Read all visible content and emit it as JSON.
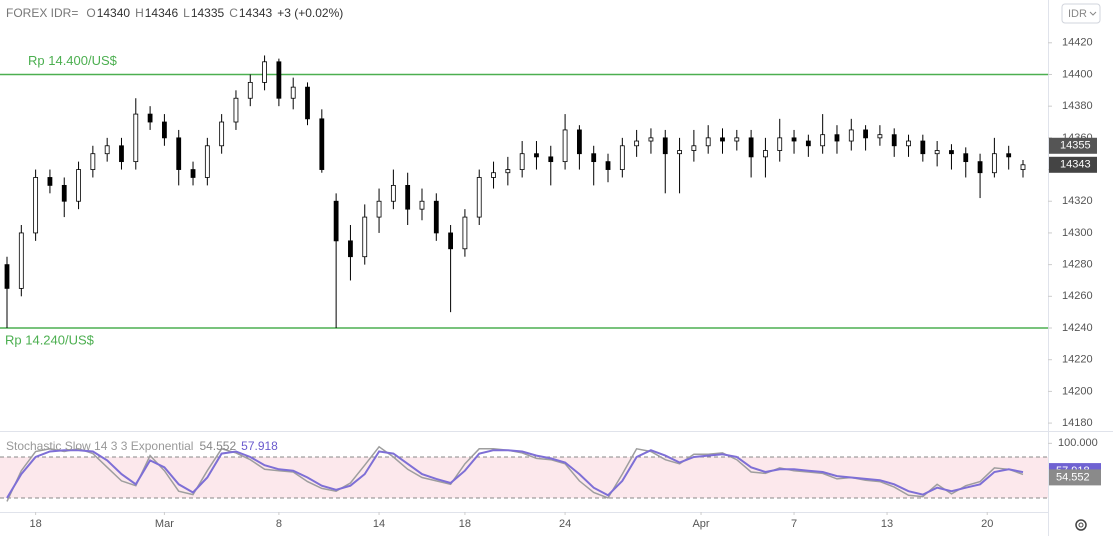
{
  "chart_data": [
    {
      "type": "candlestick",
      "symbol": "FOREX IDR=",
      "ohlc_labels": [
        "O",
        "H",
        "L",
        "C"
      ],
      "change": "+3 (+0.02%)",
      "currency": "IDR",
      "ylim": [
        14175,
        14447
      ],
      "yticks": [
        14180,
        14200,
        14220,
        14240,
        14260,
        14280,
        14300,
        14320,
        14340,
        14360,
        14380,
        14400,
        14420
      ],
      "marker_price": 14355,
      "last_price": 14343,
      "annotations": [
        {
          "text": "Rp 14.400/US$",
          "value": 14400,
          "color": "#4caf50"
        },
        {
          "text": "Rp 14.240/US$",
          "value": 14240,
          "color": "#4caf50"
        }
      ],
      "up_color": "#ffffff",
      "down_color": "#000000",
      "open": [
        14280,
        14265,
        14300,
        14335,
        14330,
        14320,
        14340,
        14350,
        14355,
        14345,
        14375,
        14370,
        14360,
        14340,
        14335,
        14355,
        14370,
        14385,
        14395,
        14408,
        14385,
        14392,
        14372,
        14320,
        14295,
        14285,
        14310,
        14320,
        14330,
        14315,
        14320,
        14300,
        14290,
        14310,
        14335,
        14338,
        14340,
        14350,
        14348,
        14345,
        14365,
        14350,
        14345,
        14340,
        14355,
        14358,
        14360,
        14350,
        14352,
        14355,
        14360,
        14358,
        14360,
        14348,
        14352,
        14360,
        14358,
        14355,
        14362,
        14358,
        14365,
        14360,
        14362,
        14355,
        14358,
        14350,
        14352,
        14350,
        14345,
        14338,
        14350,
        14340
      ],
      "high": [
        14285,
        14305,
        14340,
        14340,
        14335,
        14345,
        14355,
        14360,
        14360,
        14385,
        14380,
        14375,
        14365,
        14345,
        14360,
        14375,
        14390,
        14400,
        14412,
        14410,
        14398,
        14395,
        14378,
        14325,
        14305,
        14318,
        14328,
        14340,
        14338,
        14328,
        14325,
        14305,
        14315,
        14340,
        14345,
        14348,
        14358,
        14358,
        14355,
        14375,
        14368,
        14355,
        14350,
        14360,
        14365,
        14366,
        14365,
        14360,
        14365,
        14368,
        14366,
        14365,
        14365,
        14360,
        14372,
        14365,
        14362,
        14375,
        14368,
        14372,
        14368,
        14368,
        14366,
        14362,
        14362,
        14358,
        14356,
        14354,
        14350,
        14360,
        14355,
        14346
      ],
      "low": [
        14240,
        14260,
        14295,
        14325,
        14310,
        14315,
        14335,
        14345,
        14340,
        14340,
        14365,
        14355,
        14330,
        14330,
        14330,
        14350,
        14365,
        14380,
        14390,
        14380,
        14378,
        14368,
        14338,
        14240,
        14270,
        14280,
        14300,
        14315,
        14305,
        14308,
        14295,
        14250,
        14285,
        14305,
        14328,
        14330,
        14335,
        14340,
        14330,
        14340,
        14340,
        14330,
        14332,
        14335,
        14348,
        14350,
        14325,
        14325,
        14345,
        14350,
        14350,
        14352,
        14335,
        14335,
        14345,
        14350,
        14348,
        14350,
        14350,
        14352,
        14352,
        14355,
        14348,
        14348,
        14345,
        14342,
        14340,
        14335,
        14322,
        14335,
        14340,
        14335
      ],
      "close": [
        14265,
        14300,
        14335,
        14330,
        14320,
        14340,
        14350,
        14355,
        14345,
        14375,
        14370,
        14360,
        14340,
        14335,
        14355,
        14370,
        14385,
        14395,
        14408,
        14385,
        14392,
        14372,
        14340,
        14295,
        14285,
        14310,
        14320,
        14330,
        14315,
        14320,
        14300,
        14290,
        14310,
        14335,
        14338,
        14340,
        14350,
        14348,
        14345,
        14365,
        14350,
        14345,
        14340,
        14355,
        14358,
        14360,
        14350,
        14352,
        14355,
        14360,
        14358,
        14360,
        14348,
        14352,
        14360,
        14358,
        14355,
        14362,
        14358,
        14365,
        14360,
        14362,
        14355,
        14358,
        14350,
        14352,
        14350,
        14345,
        14338,
        14350,
        14348,
        14343
      ]
    },
    {
      "type": "line",
      "title": "Stochastic Slow 14 3 3 Exponential",
      "ylim": [
        -0.5,
        116.6
      ],
      "yticks": [
        {
          "value": 100,
          "label": "100.000"
        }
      ],
      "bands": [
        20,
        80
      ],
      "band_color": "#fce8ec",
      "xlim": [
        -0.5,
        72.5
      ],
      "xticks": [
        {
          "value": 2,
          "label": "18"
        },
        {
          "value": 11,
          "label": "Mar"
        },
        {
          "value": 19,
          "label": "8"
        },
        {
          "value": 26,
          "label": "14"
        },
        {
          "value": 32,
          "label": "18"
        },
        {
          "value": 39,
          "label": "24"
        },
        {
          "value": 48.5,
          "label": "Apr"
        },
        {
          "value": 55,
          "label": "7"
        },
        {
          "value": 61.5,
          "label": "13"
        },
        {
          "value": 68.5,
          "label": "20"
        }
      ],
      "series": [
        {
          "color": "#9e9e9e",
          "values": [
            15,
            60,
            88,
            92,
            88,
            92,
            85,
            65,
            45,
            38,
            82,
            60,
            30,
            25,
            60,
            92,
            86,
            76,
            62,
            60,
            58,
            44,
            34,
            30,
            42,
            68,
            95,
            80,
            62,
            50,
            45,
            40,
            70,
            92,
            92,
            90,
            86,
            78,
            76,
            70,
            45,
            28,
            20,
            55,
            92,
            88,
            76,
            70,
            84,
            84,
            86,
            76,
            58,
            56,
            64,
            60,
            58,
            56,
            48,
            50,
            46,
            44,
            36,
            24,
            22,
            40,
            26,
            38,
            44,
            64,
            62,
            54.552
          ]
        },
        {
          "color": "#7e6fd6",
          "values": [
            20,
            55,
            80,
            88,
            90,
            90,
            88,
            75,
            55,
            40,
            75,
            65,
            40,
            28,
            50,
            85,
            88,
            80,
            68,
            62,
            60,
            50,
            38,
            32,
            38,
            55,
            88,
            85,
            70,
            55,
            48,
            42,
            60,
            85,
            90,
            90,
            88,
            82,
            78,
            72,
            55,
            35,
            24,
            45,
            80,
            90,
            82,
            72,
            80,
            82,
            84,
            80,
            65,
            58,
            62,
            62,
            60,
            58,
            52,
            50,
            48,
            46,
            40,
            30,
            25,
            35,
            30,
            35,
            40,
            58,
            62,
            57.918
          ]
        }
      ]
    }
  ]
}
